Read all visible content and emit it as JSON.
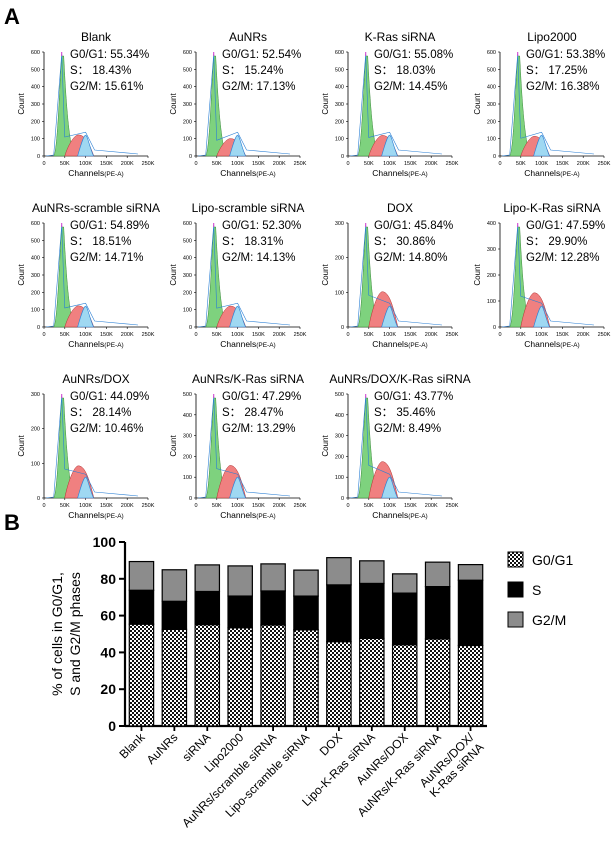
{
  "panel_a_label": "A",
  "panel_b_label": "B",
  "histogram_axes": {
    "ylabel": "Count",
    "xlabel": "Channels",
    "xlabel_suffix": "(PE-A)",
    "x_ticks": [
      "0",
      "50K",
      "100K",
      "150K",
      "200K",
      "250K"
    ]
  },
  "histograms": [
    {
      "title": "Blank",
      "g0g1": "G0/G1: 55.34%",
      "s": "S： 18.43%",
      "g2m": "G2/M: 15.61%",
      "ymax": 600,
      "y_ticks": [
        "0",
        "100",
        "200",
        "300",
        "400",
        "500",
        "600"
      ]
    },
    {
      "title": "AuNRs",
      "g0g1": "G0/G1: 52.54%",
      "s": "S： 15.24%",
      "g2m": "G2/M: 17.13%",
      "ymax": 600,
      "y_ticks": [
        "0",
        "100",
        "200",
        "300",
        "400",
        "500",
        "600"
      ]
    },
    {
      "title": "K-Ras siRNA",
      "g0g1": "G0/G1: 55.08%",
      "s": "S： 18.03%",
      "g2m": "G2/M: 14.45%",
      "ymax": 600,
      "y_ticks": [
        "0",
        "100",
        "200",
        "300",
        "400",
        "500",
        "600"
      ]
    },
    {
      "title": "Lipo2000",
      "g0g1": "G0/G1: 53.38%",
      "s": "S： 17.25%",
      "g2m": "G2/M: 16.38%",
      "ymax": 600,
      "y_ticks": [
        "0",
        "100",
        "200",
        "300",
        "400",
        "500",
        "600"
      ]
    },
    {
      "title": "AuNRs-scramble siRNA",
      "g0g1": "G0/G1: 54.89%",
      "s": "S： 18.51%",
      "g2m": "G2/M: 14.71%",
      "ymax": 600,
      "y_ticks": [
        "0",
        "100",
        "200",
        "300",
        "400",
        "500",
        "600"
      ]
    },
    {
      "title": "Lipo-scramble siRNA",
      "g0g1": "G0/G1: 52.30%",
      "s": "S： 18.31%",
      "g2m": "G2/M: 14.13%",
      "ymax": 600,
      "y_ticks": [
        "0",
        "100",
        "200",
        "300",
        "400",
        "500",
        "600"
      ]
    },
    {
      "title": "DOX",
      "g0g1": "G0/G1: 45.84%",
      "s": "S： 30.86%",
      "g2m": "G2/M: 14.80%",
      "ymax": 300,
      "y_ticks": [
        "0",
        "100",
        "200",
        "300"
      ]
    },
    {
      "title": "Lipo-K-Ras siRNA",
      "g0g1": "G0/G1: 47.59%",
      "s": "S： 29.90%",
      "g2m": "G2/M: 12.28%",
      "ymax": 400,
      "y_ticks": [
        "0",
        "100",
        "200",
        "300",
        "400"
      ]
    },
    {
      "title": "AuNRs/DOX",
      "g0g1": "G0/G1: 44.09%",
      "s": "S： 28.14%",
      "g2m": "G2/M: 10.46%",
      "ymax": 300,
      "y_ticks": [
        "0",
        "100",
        "200",
        "300"
      ]
    },
    {
      "title": "AuNRs/K-Ras siRNA",
      "g0g1": "G0/G1: 47.29%",
      "s": "S： 28.47%",
      "g2m": "G2/M: 13.29%",
      "ymax": 500,
      "y_ticks": [
        "0",
        "100",
        "200",
        "300",
        "400",
        "500"
      ]
    },
    {
      "title": "AuNRs/DOX/K-Ras siRNA",
      "g0g1": "G0/G1: 43.77%",
      "s": "S： 35.46%",
      "g2m": "G2/M: 8.49%",
      "ymax": 500,
      "y_ticks": [
        "0",
        "100",
        "200",
        "300",
        "400",
        "500"
      ]
    }
  ],
  "colors": {
    "g0g1_fill": "#7ed27e",
    "s_fill": "#f08080",
    "g2m_fill": "#9fd8f2",
    "fit_line": "#2a7fd4",
    "peak_line": "#cc33cc",
    "stack_g2m": "#8c8c8c",
    "stack_s": "#000000"
  },
  "chart_data": {
    "type": "bar",
    "stacked": true,
    "ylabel_line1": "% of cells in G0/G1,",
    "ylabel_line2": "S and G2/M phases",
    "ylim": [
      0,
      100
    ],
    "y_ticks": [
      "0",
      "20",
      "40",
      "60",
      "80",
      "100"
    ],
    "categories": [
      "Blank",
      "AuNRs",
      "siRNA",
      "Lipo2000",
      "AuNRs/scramble siRNA",
      "Lipo-scramble siRNA",
      "DOX",
      "Lipo-K-Ras siRNA",
      "AuNRs/DOX",
      "AuNRs/K-Ras siRNA",
      "AuNRs/DOX/ K-Ras siRNA"
    ],
    "series": [
      {
        "name": "G0/G1",
        "values": [
          55.34,
          52.54,
          55.08,
          53.38,
          54.89,
          52.3,
          45.84,
          47.59,
          44.09,
          47.29,
          43.77
        ]
      },
      {
        "name": "S",
        "values": [
          18.43,
          15.24,
          18.03,
          17.25,
          18.51,
          18.31,
          30.86,
          29.9,
          28.14,
          28.47,
          35.46
        ]
      },
      {
        "name": "G2/M",
        "values": [
          15.61,
          17.13,
          14.45,
          16.38,
          14.71,
          14.13,
          14.8,
          12.28,
          10.46,
          13.29,
          8.49
        ]
      }
    ],
    "legend": [
      "G0/G1",
      "S",
      "G2/M"
    ],
    "legend_position": "right"
  }
}
